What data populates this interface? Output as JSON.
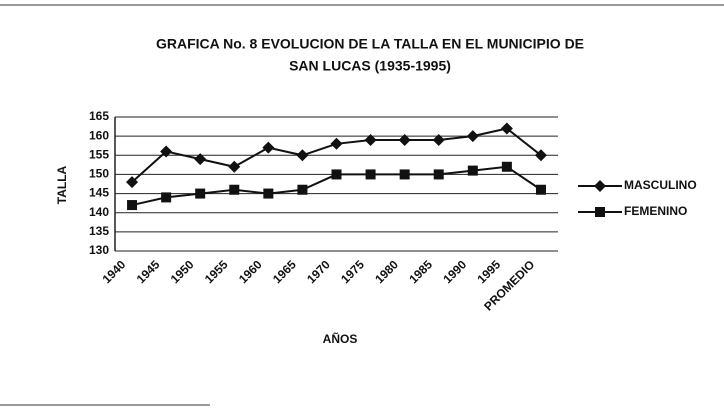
{
  "chart_data": {
    "type": "line",
    "title": [
      "GRAFICA No. 8 EVOLUCION DE LA TALLA EN EL MUNICIPIO DE",
      "SAN LUCAS (1935-1995)"
    ],
    "y_label": "TALLA",
    "x_label": "AÑOS",
    "categories": [
      "1940",
      "1945",
      "1950",
      "1955",
      "1960",
      "1965",
      "1970",
      "1975",
      "1980",
      "1985",
      "1990",
      "1995",
      "PROMEDIO"
    ],
    "series": [
      {
        "name": "MASCULINO",
        "color": "#111111",
        "marker": "diamond",
        "values": [
          148,
          156,
          154,
          152,
          157,
          155,
          158,
          159,
          159,
          159,
          160,
          162,
          155
        ]
      },
      {
        "name": "FEMENINO",
        "color": "#111111",
        "marker": "square",
        "values": [
          142,
          144,
          145,
          146,
          145,
          146,
          150,
          150,
          150,
          150,
          151,
          152,
          146
        ]
      }
    ],
    "ylim": [
      130,
      165
    ],
    "yticks": [
      130,
      135,
      140,
      145,
      150,
      155,
      160,
      165
    ],
    "grid": true,
    "legend": "right"
  }
}
